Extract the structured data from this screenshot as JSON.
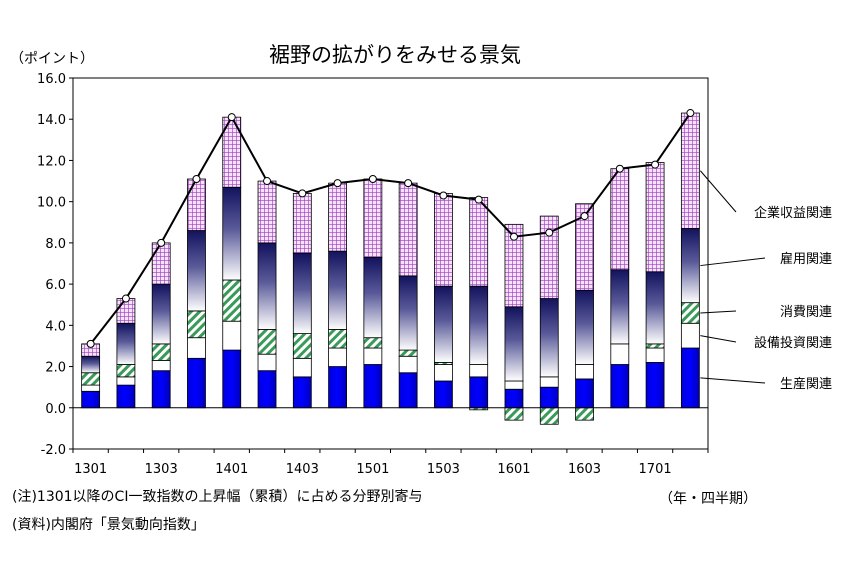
{
  "chart_data": {
    "type": "bar",
    "title": "裾野の拡がりをみせる景気",
    "ylabel": "（ポイント）",
    "xlabel": "（年・四半期）",
    "ylim": [
      -2,
      16
    ],
    "yticks": [
      "-2.0",
      "0.0",
      "2.0",
      "4.0",
      "6.0",
      "8.0",
      "10.0",
      "12.0",
      "14.0",
      "16.0"
    ],
    "categories": [
      "1301",
      "1302",
      "1303",
      "1304",
      "1401",
      "1402",
      "1403",
      "1404",
      "1501",
      "1502",
      "1503",
      "1504",
      "1601",
      "1602",
      "1603",
      "1604",
      "1701",
      "1702"
    ],
    "tick_labels": [
      "1301",
      "",
      "1303",
      "",
      "1401",
      "",
      "1403",
      "",
      "1501",
      "",
      "1503",
      "",
      "1601",
      "",
      "1603",
      "",
      "1701",
      ""
    ],
    "stack_order": [
      "生産関連",
      "設備投資関連",
      "消費関連",
      "雇用関連",
      "企業収益関連"
    ],
    "series": [
      {
        "name": "生産関連",
        "color": "#0000ee",
        "values": [
          0.8,
          1.1,
          1.8,
          2.4,
          2.8,
          1.8,
          1.5,
          2.0,
          2.1,
          1.7,
          1.3,
          1.5,
          0.9,
          1.0,
          1.4,
          2.1,
          2.2,
          2.9
        ]
      },
      {
        "name": "設備投資関連",
        "color": "#ffffff",
        "values": [
          0.3,
          0.4,
          0.5,
          1.0,
          1.4,
          0.8,
          0.9,
          0.9,
          0.8,
          0.8,
          0.8,
          0.6,
          0.4,
          0.5,
          0.7,
          1.0,
          0.7,
          1.2
        ]
      },
      {
        "name": "消費関連",
        "color": "#3a9a5a",
        "values": [
          0.6,
          0.6,
          0.8,
          1.3,
          2.0,
          1.2,
          1.2,
          0.9,
          0.5,
          0.3,
          0.1,
          -0.1,
          -0.6,
          -0.8,
          -0.6,
          0.0,
          0.2,
          1.0
        ]
      },
      {
        "name": "雇用関連",
        "color": "#1a1a70",
        "values": [
          0.8,
          2.0,
          2.9,
          3.9,
          4.5,
          4.2,
          3.9,
          3.8,
          3.9,
          3.6,
          3.7,
          3.8,
          3.6,
          3.8,
          3.6,
          3.6,
          3.5,
          3.6
        ]
      },
      {
        "name": "企業収益関連",
        "color": "#a040c0",
        "values": [
          0.6,
          1.2,
          2.0,
          2.5,
          3.4,
          3.0,
          2.9,
          3.3,
          3.8,
          4.5,
          4.5,
          4.3,
          4.0,
          4.0,
          4.2,
          4.9,
          5.3,
          5.6
        ]
      }
    ],
    "total_line": {
      "values": [
        3.1,
        5.3,
        8.0,
        11.1,
        14.1,
        11.0,
        10.4,
        10.9,
        11.1,
        10.9,
        10.3,
        10.1,
        8.3,
        8.5,
        9.3,
        11.6,
        11.8,
        14.3
      ]
    },
    "legend_labels": [
      "企業収益関連",
      "雇用関連",
      "消費関連",
      "設備投資関連",
      "生産関連"
    ],
    "legend_placement": "right",
    "grid": false
  },
  "notes": {
    "note1": "(注)1301以降のCI一致指数の上昇幅（累積）に占める分野別寄与",
    "note2": "(資料)内閣府「景気動向指数」"
  }
}
